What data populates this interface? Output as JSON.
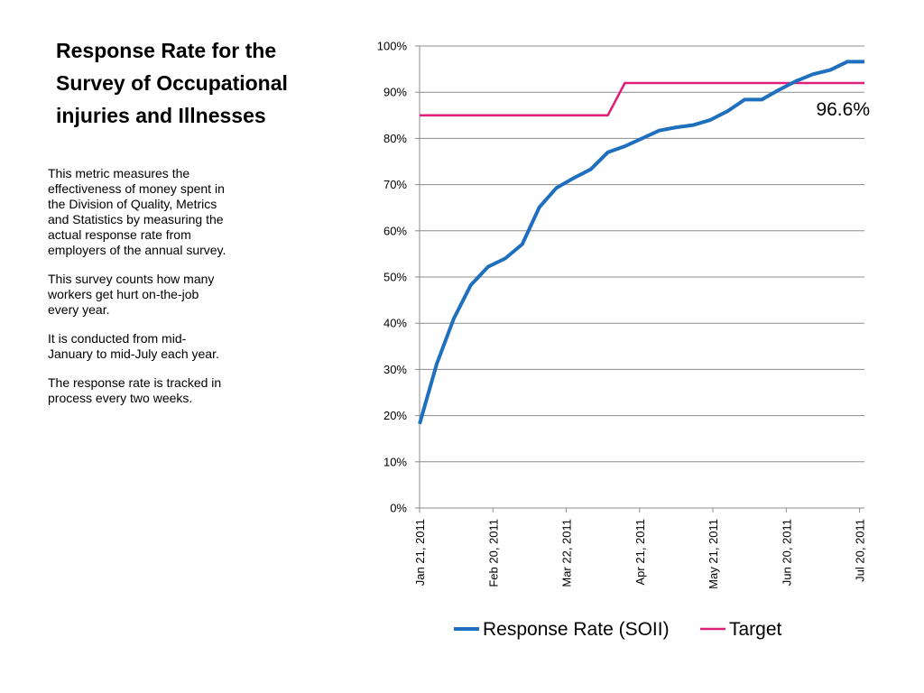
{
  "slide": {
    "title_lines": [
      "Response Rate for the",
      "Survey of Occupational",
      "injuries and Illnesses"
    ],
    "paragraphs": [
      [
        "This metric measures  the",
        "effectiveness of money spent in",
        "the Division of Quality, Metrics",
        "and Statistics by measuring the",
        "actual response rate from",
        "employers of the annual survey."
      ],
      [
        "This survey counts how many",
        "workers get hurt on-the-job",
        "every year."
      ],
      [
        "It is conducted from mid-",
        "January to mid-July each year."
      ],
      [
        "The response rate is tracked in",
        "process every two weeks."
      ]
    ]
  },
  "chart_data": {
    "type": "line",
    "title": "",
    "xlabel": "",
    "ylabel": "",
    "x_axis": {
      "type": "date",
      "range": [
        "2011-01-21",
        "2011-07-22"
      ],
      "tick_labels": [
        "Jan 21, 2011",
        "Feb 20, 2011",
        "Mar 22, 2011",
        "Apr 21, 2011",
        "May 21, 2011",
        "Jun 20, 2011",
        "Jul 20, 2011"
      ],
      "tick_dates": [
        "2011-01-21",
        "2011-02-20",
        "2011-03-22",
        "2011-04-21",
        "2011-05-21",
        "2011-06-20",
        "2011-07-20"
      ]
    },
    "y_axis": {
      "range": [
        0,
        100
      ],
      "ticks": [
        0,
        10,
        20,
        30,
        40,
        50,
        60,
        70,
        80,
        90,
        100
      ],
      "tick_labels": [
        "0%",
        "10%",
        "20%",
        "30%",
        "40%",
        "50%",
        "60%",
        "70%",
        "80%",
        "90%",
        "100%"
      ],
      "unit": "%"
    },
    "grid": {
      "horizontal": true,
      "vertical": false
    },
    "legend": {
      "position": "bottom"
    },
    "series": [
      {
        "name": "Response Rate (SOII)",
        "color": "#1f6fbf",
        "points": [
          [
            "2011-01-21",
            18.2
          ],
          [
            "2011-01-28",
            31.2
          ],
          [
            "2011-02-04",
            41.0
          ],
          [
            "2011-02-11",
            48.3
          ],
          [
            "2011-02-18",
            52.2
          ],
          [
            "2011-02-25",
            54.0
          ],
          [
            "2011-03-04",
            57.1
          ],
          [
            "2011-03-11",
            65.1
          ],
          [
            "2011-03-18",
            69.3
          ],
          [
            "2011-03-25",
            71.4
          ],
          [
            "2011-04-01",
            73.3
          ],
          [
            "2011-04-08",
            77.0
          ],
          [
            "2011-04-15",
            78.3
          ],
          [
            "2011-04-22",
            80.0
          ],
          [
            "2011-04-29",
            81.7
          ],
          [
            "2011-05-06",
            82.4
          ],
          [
            "2011-05-13",
            82.9
          ],
          [
            "2011-05-20",
            84.0
          ],
          [
            "2011-05-27",
            85.9
          ],
          [
            "2011-06-03",
            88.4
          ],
          [
            "2011-06-10",
            88.4
          ],
          [
            "2011-06-17",
            90.5
          ],
          [
            "2011-06-24",
            92.4
          ],
          [
            "2011-07-01",
            93.9
          ],
          [
            "2011-07-08",
            94.8
          ],
          [
            "2011-07-15",
            96.6
          ],
          [
            "2011-07-22",
            96.6
          ]
        ]
      },
      {
        "name": "Target",
        "color": "#e0207a",
        "points": [
          [
            "2011-01-21",
            85
          ],
          [
            "2011-04-08",
            85
          ],
          [
            "2011-04-15",
            92
          ],
          [
            "2011-07-22",
            92
          ]
        ]
      }
    ],
    "annotations": [
      {
        "text": "96.6%",
        "x": "2011-07-22",
        "y": 96.6
      }
    ]
  }
}
